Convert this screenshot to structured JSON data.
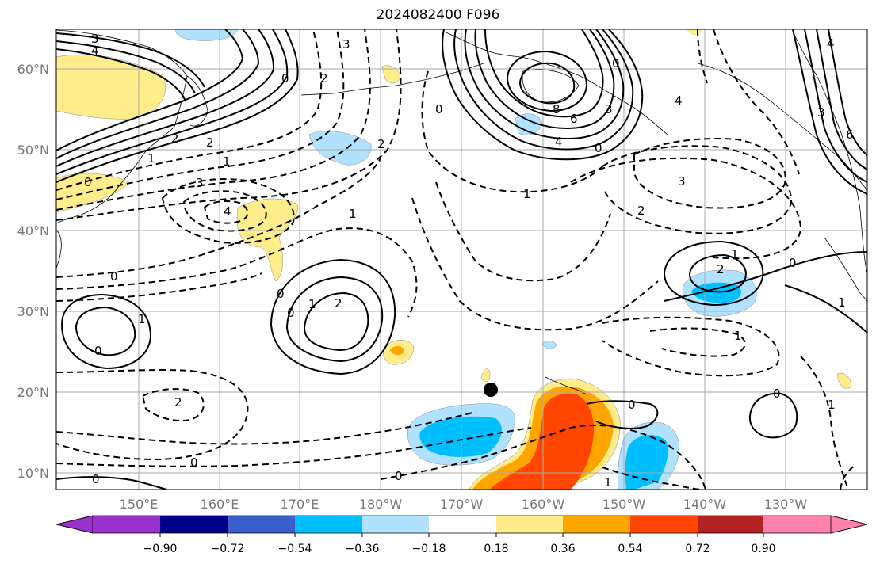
{
  "title": "2024082400 F096",
  "map": {
    "lat_labels": [
      "60°N",
      "50°N",
      "40°N",
      "30°N",
      "20°N",
      "10°N"
    ],
    "lon_labels": [
      "150°E",
      "160°E",
      "170°E",
      "180°W",
      "170°W",
      "160°W",
      "150°W",
      "140°W",
      "130°W"
    ],
    "contour_labels": [
      "3",
      "4",
      "2",
      "2",
      "1",
      "0",
      "1",
      "3",
      "4",
      "2",
      "0",
      "3",
      "2",
      "0",
      "8",
      "6",
      "4",
      "3",
      "0",
      "4",
      "1",
      "3",
      "2",
      "0",
      "4",
      "3",
      "6",
      "1",
      "0",
      "1",
      "0",
      "1",
      "2",
      "1",
      "0",
      "2",
      "0",
      "1",
      "0",
      "0",
      "2",
      "1",
      "0",
      "1",
      "0",
      "0",
      "1",
      "0"
    ]
  },
  "colorbar": {
    "ticks": [
      "−0.90",
      "−0.72",
      "−0.54",
      "−0.36",
      "−0.18",
      "0.18",
      "0.36",
      "0.54",
      "0.72",
      "0.90"
    ],
    "colors": [
      "#9932CC",
      "#00008B",
      "#3A5FCD",
      "#00BFFF",
      "#B0E2FF",
      "#FFFFFF",
      "#FFEC8B",
      "#FFA500",
      "#FF4500",
      "#B22222",
      "#FF82AB"
    ]
  }
}
